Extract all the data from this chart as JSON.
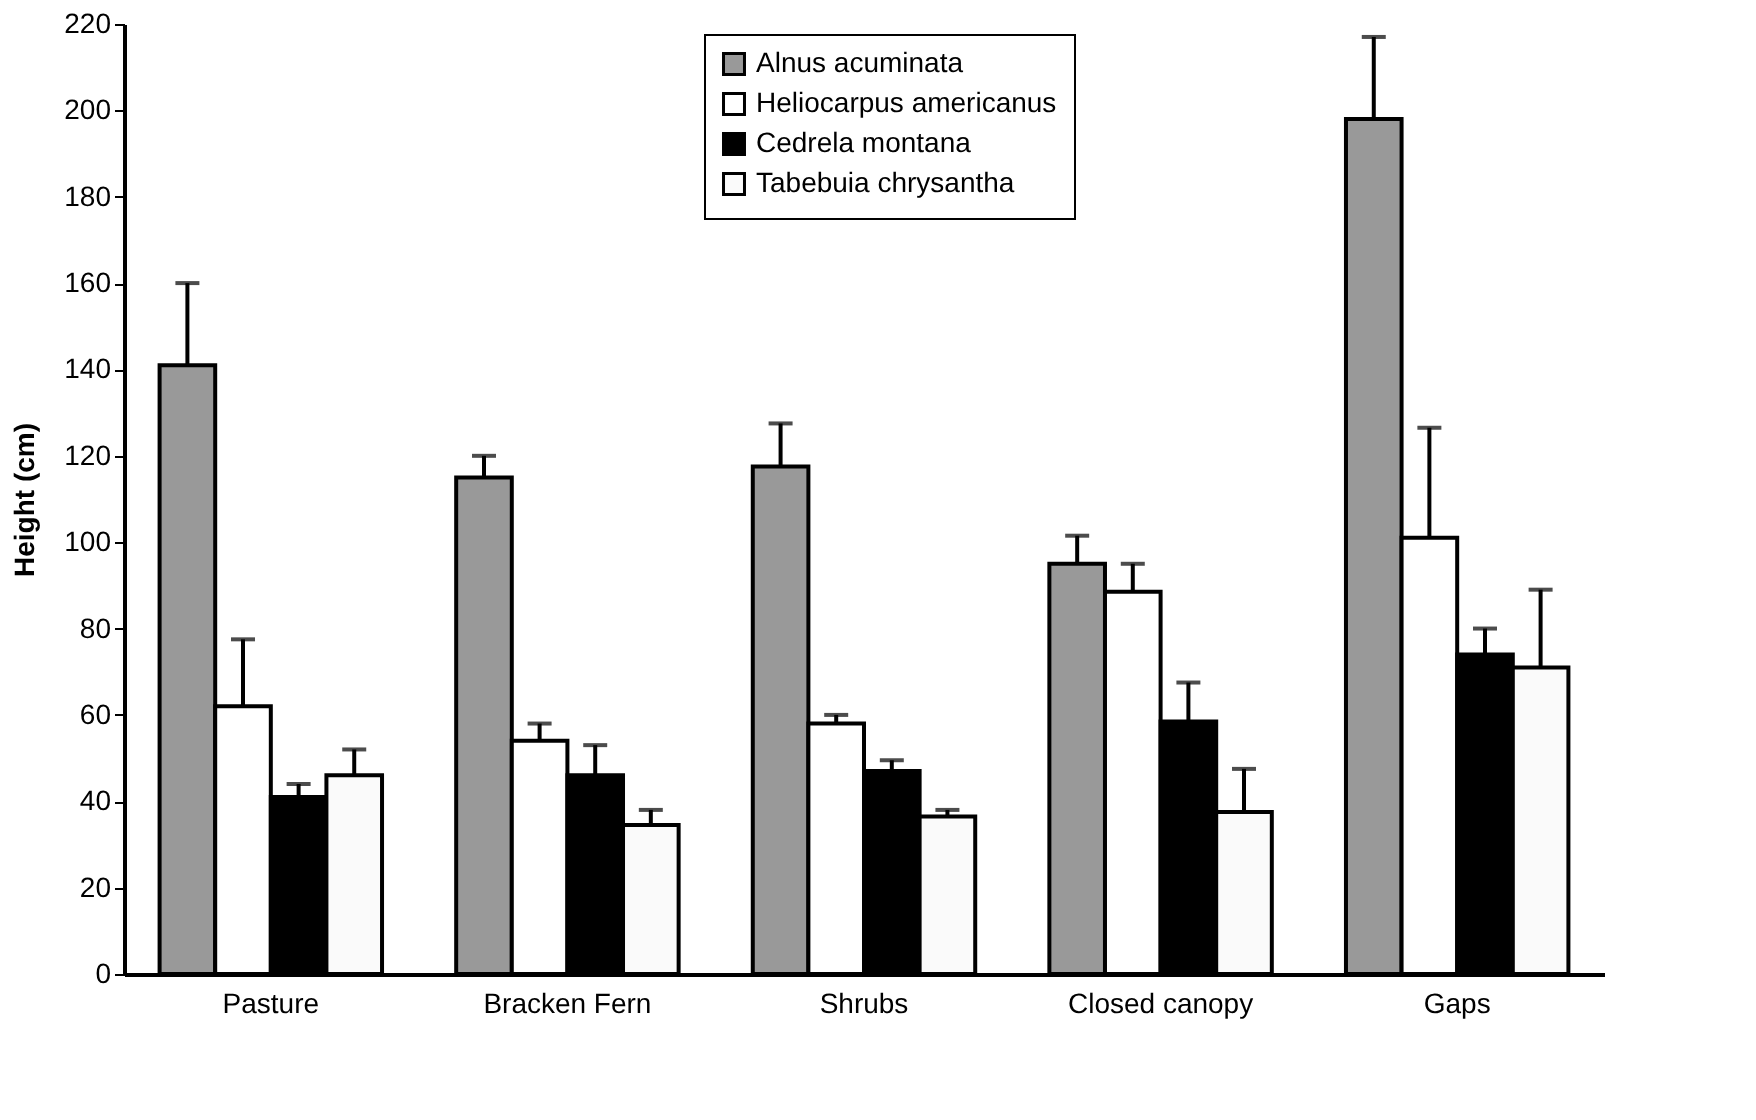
{
  "chart_data": {
    "type": "bar",
    "ylabel": "Height (cm)",
    "categories": [
      "Pasture",
      "Bracken Fern",
      "Shrubs",
      "Closed canopy",
      "Gaps"
    ],
    "series": [
      {
        "name": "Alnus acuminata",
        "color": "#999999",
        "values": [
          141,
          115,
          117.5,
          95,
          198
        ],
        "errors": [
          [
            141,
            160
          ],
          [
            115,
            120
          ],
          [
            117.5,
            127.5
          ],
          [
            95,
            101.5
          ],
          [
            198,
            217
          ]
        ]
      },
      {
        "name": "Heliocarpus americanus",
        "color": "#ffffff",
        "values": [
          62,
          54,
          58,
          88.5,
          101
        ],
        "errors": [
          [
            62,
            77.5
          ],
          [
            54,
            58
          ],
          [
            58,
            60
          ],
          [
            88.5,
            95
          ],
          [
            101,
            126.5
          ]
        ]
      },
      {
        "name": "Cedrela montana",
        "color": "#000000",
        "values": [
          41,
          46,
          47,
          58.5,
          74
        ],
        "errors": [
          [
            41,
            44
          ],
          [
            46,
            53
          ],
          [
            47,
            49.5
          ],
          [
            58.5,
            67.5
          ],
          [
            74,
            80
          ]
        ]
      },
      {
        "name": "Tabebuia chrysantha",
        "color": "#fafafa",
        "values": [
          46,
          34.5,
          36.5,
          37.5,
          71
        ],
        "errors": [
          [
            46,
            52
          ],
          [
            34.5,
            38
          ],
          [
            36.5,
            38
          ],
          [
            37.5,
            47.5
          ],
          [
            71,
            89
          ]
        ]
      }
    ],
    "ylim": [
      0,
      220
    ],
    "yticks": [
      0,
      20,
      40,
      60,
      80,
      100,
      120,
      140,
      160,
      180,
      200,
      220
    ],
    "grid": false,
    "legend": "top"
  }
}
